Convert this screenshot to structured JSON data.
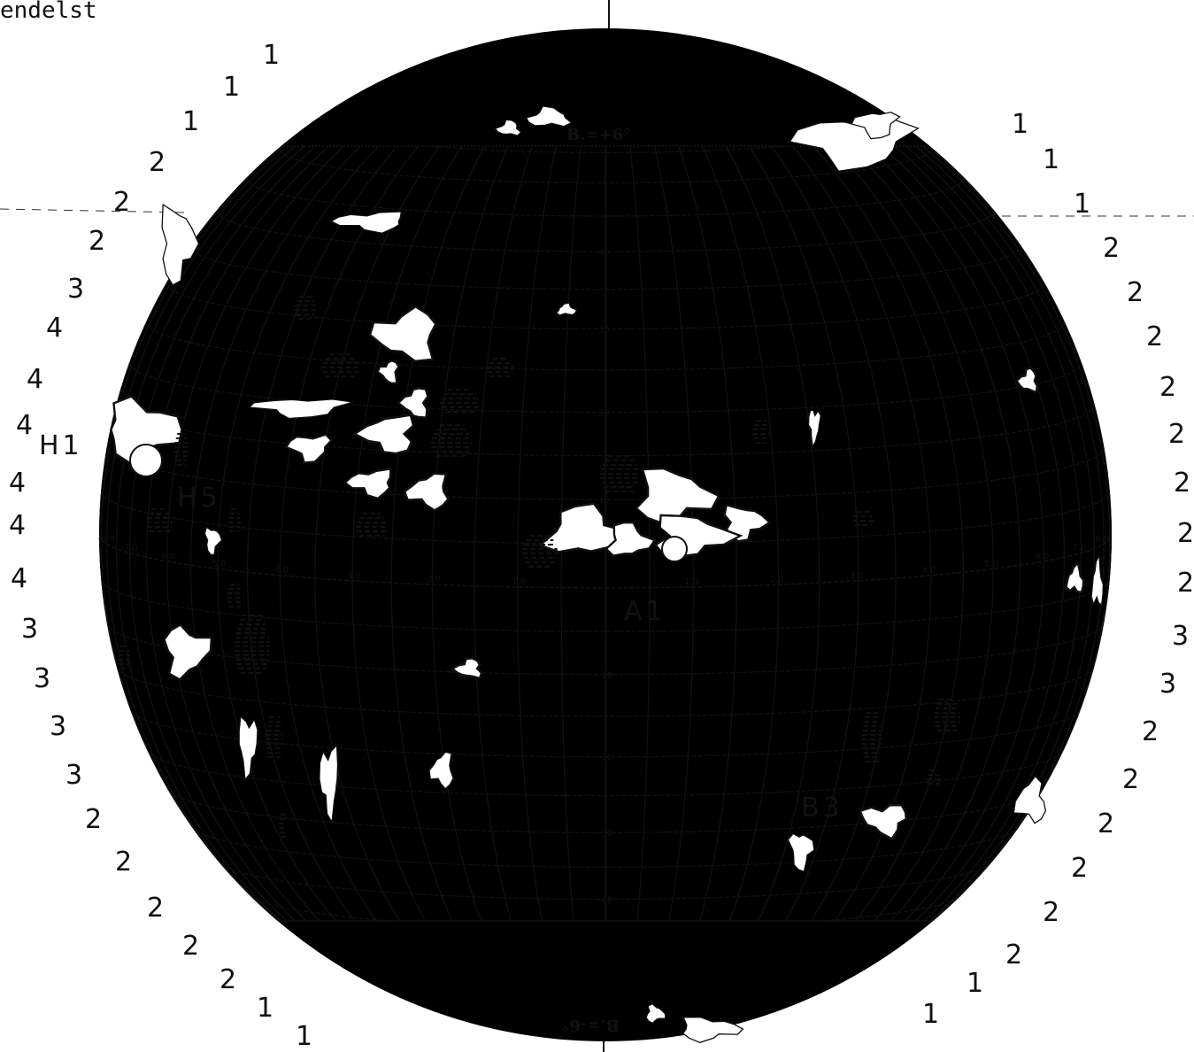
{
  "header": {
    "text": "endelst"
  },
  "b_labels": {
    "top": "B.=+6°",
    "bottom": "B.=-6°"
  },
  "region_labels": [
    "H1",
    "H5",
    "A1",
    "B3"
  ],
  "longitude_ticks": [
    "-8.0",
    "-7.0",
    "-6.0",
    "-5.0",
    "-4.0",
    "-3.0",
    "-2.0",
    "-1.0",
    "1.0",
    "2.0",
    "3.0",
    "4.0",
    "5.0",
    "6.0",
    "7.0",
    "8.0"
  ],
  "latitude_ticks": [
    "40",
    "30",
    "20",
    "10",
    "-10",
    "-20",
    "-30",
    "-40"
  ],
  "rim_left": [
    "1",
    "1",
    "1",
    "2",
    "2",
    "2",
    "3",
    "4",
    "4",
    "4",
    "4",
    "4",
    "4",
    "3",
    "3",
    "3",
    "3",
    "2",
    "2",
    "2",
    "2",
    "2",
    "1",
    "1"
  ],
  "rim_right": [
    "1",
    "1",
    "1",
    "2",
    "2",
    "2",
    "2",
    "2",
    "2",
    "2",
    "2",
    "3",
    "3",
    "2",
    "2",
    "2",
    "2",
    "2",
    "2",
    "1",
    "1"
  ]
}
